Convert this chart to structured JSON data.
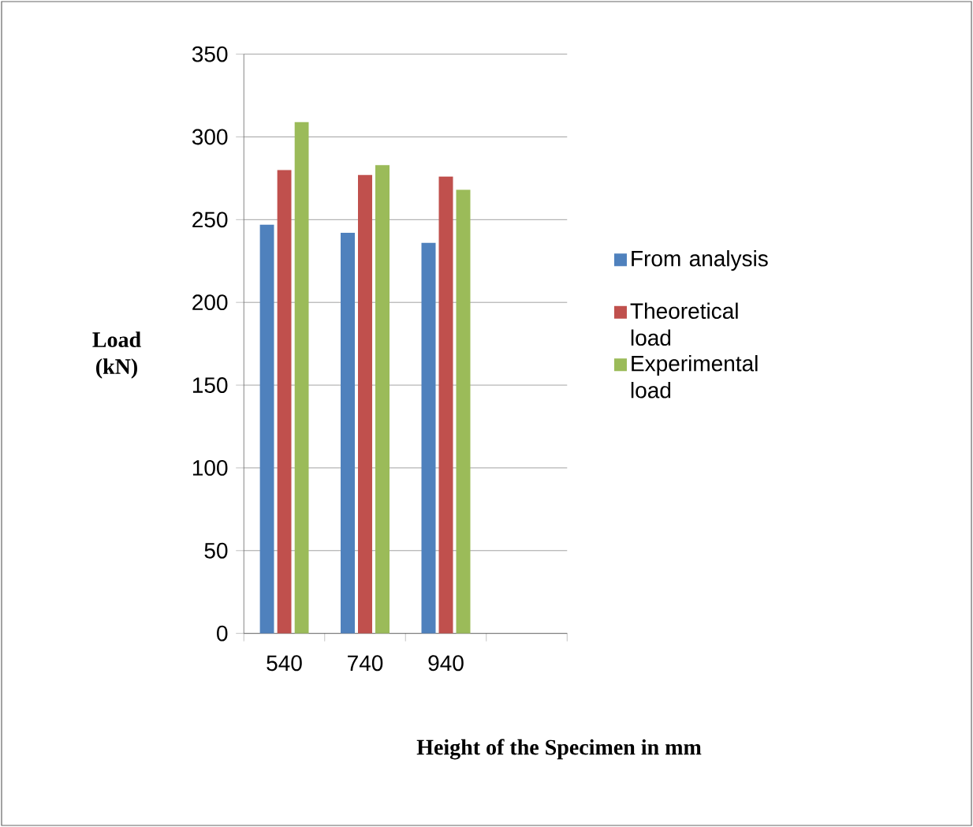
{
  "chart_data": {
    "type": "bar",
    "xlabel": "Height of the Specimen in mm",
    "ylabel": "Load (kN)",
    "categories": [
      "540",
      "740",
      "940",
      null
    ],
    "series": [
      {
        "name": "From analysis",
        "color": "#4f81bd",
        "values": [
          247,
          242,
          236,
          null
        ]
      },
      {
        "name": "Theoretical load",
        "color": "#c0504d",
        "values": [
          280,
          277,
          276,
          null
        ]
      },
      {
        "name": "Experimental load",
        "color": "#9bbb59",
        "values": [
          309,
          283,
          268,
          null
        ]
      }
    ],
    "ylim": [
      0,
      350
    ],
    "yticks": [
      0,
      50,
      100,
      150,
      200,
      250,
      300,
      350
    ],
    "grid": "y",
    "legend": "right"
  }
}
